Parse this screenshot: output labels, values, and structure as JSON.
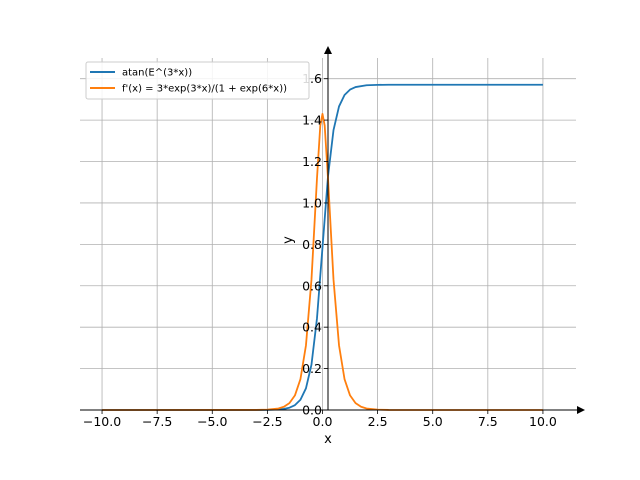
{
  "chart_data": {
    "type": "line",
    "title": "",
    "xlabel": "x",
    "ylabel": "y",
    "xlim": [
      -11,
      11.5
    ],
    "ylim": [
      0,
      1.7
    ],
    "xticks": [
      -10,
      -7.5,
      -5,
      -2.5,
      0,
      2.5,
      5,
      7.5,
      10
    ],
    "xtick_labels": [
      "−10.0",
      "−7.5",
      "−5.0",
      "−2.5",
      "0.0",
      "2.5",
      "5.0",
      "7.5",
      "10.0"
    ],
    "yticks": [
      0,
      0.2,
      0.4,
      0.6,
      0.8,
      1.0,
      1.2,
      1.4,
      1.6
    ],
    "ytick_labels": [
      "0.0",
      "0.2",
      "0.4",
      "0.6",
      "0.8",
      "1.0",
      "1.2",
      "1.4",
      "1.6"
    ],
    "grid": true,
    "legend_position": "top-left",
    "series": [
      {
        "name": "atan(E^(3*x))",
        "color": "#1f77b4",
        "x": [
          -10,
          -3,
          -2.5,
          -2,
          -1.75,
          -1.5,
          -1.25,
          -1,
          -0.75,
          -0.5,
          -0.25,
          0,
          0.25,
          0.5,
          0.75,
          1,
          1.25,
          1.5,
          2,
          2.5,
          3,
          10
        ],
        "y": [
          0,
          0.0001,
          0.0006,
          0.0025,
          0.0052,
          0.0111,
          0.0235,
          0.0497,
          0.1047,
          0.2189,
          0.4426,
          0.7854,
          1.1282,
          1.3519,
          1.4661,
          1.5211,
          1.5473,
          1.5597,
          1.5683,
          1.5702,
          1.5707,
          1.5708
        ]
      },
      {
        "name": "f'(x) = 3*exp(3*x)/(1 + exp(6*x))",
        "color": "#ff7f0e",
        "x": [
          -10,
          -3,
          -2.5,
          -2,
          -1.75,
          -1.5,
          -1.25,
          -1,
          -0.75,
          -0.5,
          -0.25,
          -0.1,
          0,
          0.1,
          0.25,
          0.5,
          0.75,
          1,
          1.25,
          1.5,
          1.75,
          2,
          2.5,
          3,
          10
        ],
        "y": [
          0,
          0.0004,
          0.0017,
          0.0074,
          0.0157,
          0.0333,
          0.0705,
          0.149,
          0.3122,
          0.6293,
          1.1186,
          1.3736,
          1.43,
          1.3736,
          1.1186,
          0.6293,
          0.3122,
          0.149,
          0.0705,
          0.0333,
          0.0157,
          0.0074,
          0.0017,
          0.0004,
          0
        ]
      }
    ]
  }
}
